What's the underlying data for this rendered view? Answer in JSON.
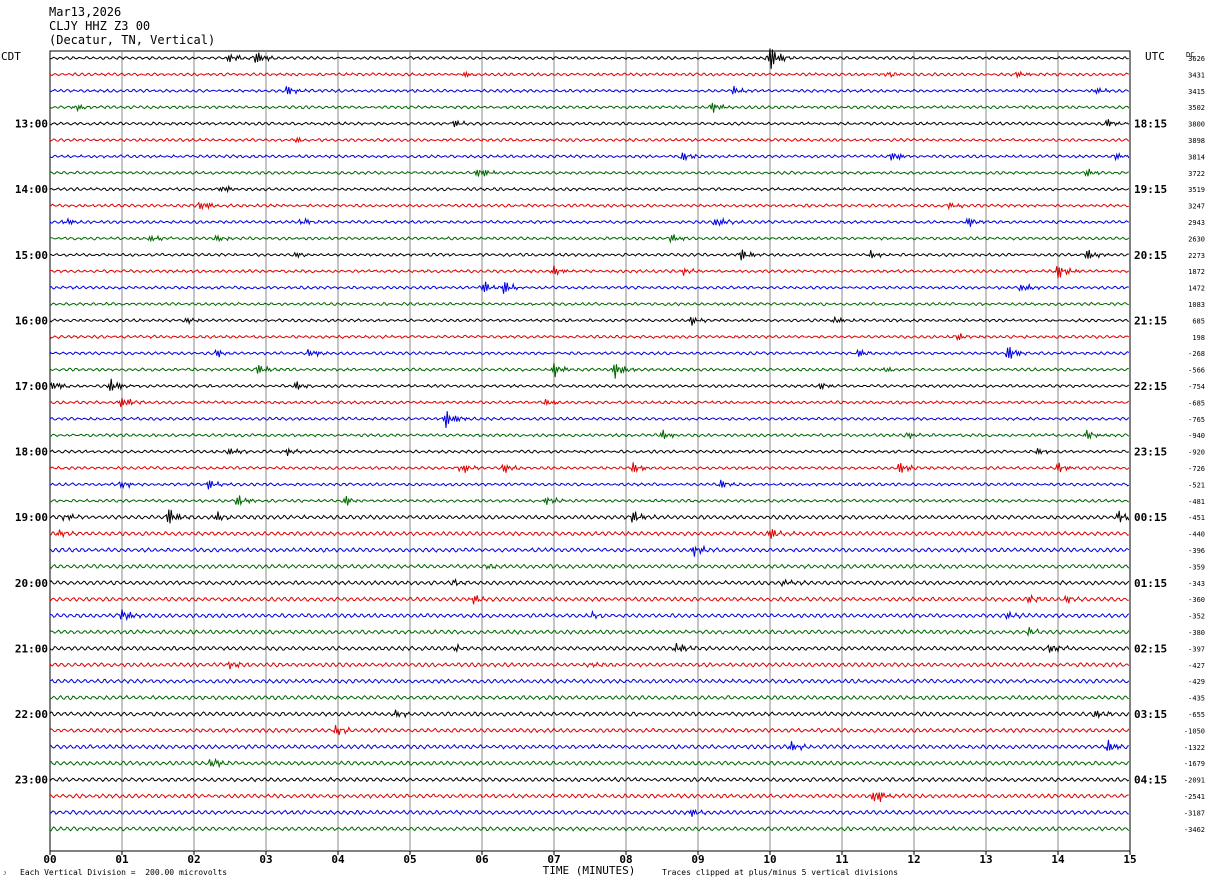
{
  "header": {
    "date": "Mar13,2026",
    "station": "CLJY HHZ Z3 00",
    "location": "(Decatur, TN, Vertical)"
  },
  "axes": {
    "left_tz": "CDT",
    "right_tz": "UTC",
    "dc_label": "DC",
    "x_label": "TIME (MINUTES)",
    "x_ticks": [
      "00",
      "01",
      "02",
      "03",
      "04",
      "05",
      "06",
      "07",
      "08",
      "09",
      "10",
      "11",
      "12",
      "13",
      "14",
      "15"
    ]
  },
  "footer": {
    "scale_note": "Each Vertical Division =  200.00 microvolts",
    "clip_note": "Traces clipped at plus/minus 5 vertical divisions",
    "corner_mark": "ᴶ"
  },
  "colors": {
    "trace_cycle": [
      "#000000",
      "#e00000",
      "#0000e0",
      "#006600"
    ],
    "grid": "#888888"
  },
  "chart_data": {
    "type": "helicorder",
    "minutes_per_line": 15,
    "xlim": [
      0,
      15
    ],
    "row_count": 48,
    "hour_labels_left": [
      {
        "row": 4,
        "text": "13:00"
      },
      {
        "row": 8,
        "text": "14:00"
      },
      {
        "row": 12,
        "text": "15:00"
      },
      {
        "row": 16,
        "text": "16:00"
      },
      {
        "row": 20,
        "text": "17:00"
      },
      {
        "row": 24,
        "text": "18:00"
      },
      {
        "row": 28,
        "text": "19:00"
      },
      {
        "row": 32,
        "text": "20:00"
      },
      {
        "row": 36,
        "text": "21:00"
      },
      {
        "row": 40,
        "text": "22:00"
      },
      {
        "row": 44,
        "text": "23:00"
      }
    ],
    "hour_labels_right": [
      {
        "row": 4,
        "text": "18:15"
      },
      {
        "row": 8,
        "text": "19:15"
      },
      {
        "row": 12,
        "text": "20:15"
      },
      {
        "row": 16,
        "text": "21:15"
      },
      {
        "row": 20,
        "text": "22:15"
      },
      {
        "row": 24,
        "text": "23:15"
      },
      {
        "row": 28,
        "text": "00:15"
      },
      {
        "row": 32,
        "text": "01:15"
      },
      {
        "row": 36,
        "text": "02:15"
      },
      {
        "row": 40,
        "text": "03:15"
      },
      {
        "row": 44,
        "text": "04:15"
      }
    ],
    "dc_offsets": [
      "3626",
      "3431",
      "3415",
      "3502",
      "3800",
      "3898",
      "3814",
      "3722",
      "3519",
      "3247",
      "2943",
      "2630",
      "2273",
      "1872",
      "1472",
      "1083",
      "685",
      "198",
      "-268",
      "-566",
      "-754",
      "-685",
      "-765",
      "-940",
      "-920",
      "-726",
      "-521",
      "-481",
      "-451",
      "-440",
      "-396",
      "-359",
      "-343",
      "-360",
      "-352",
      "-380",
      "-397",
      "-427",
      "-429",
      "-435",
      "-655",
      "-1050",
      "-1322",
      "-1679",
      "-2091",
      "-2541",
      "-3187",
      "-3462"
    ],
    "events": [
      {
        "row": 0,
        "minute": 2.5,
        "amp": 5
      },
      {
        "row": 0,
        "minute": 2.85,
        "amp": 7
      },
      {
        "row": 0,
        "minute": 9.98,
        "amp": 13
      },
      {
        "row": 1,
        "minute": 5.75,
        "amp": 3
      },
      {
        "row": 1,
        "minute": 11.6,
        "amp": 3
      },
      {
        "row": 1,
        "minute": 13.4,
        "amp": 4
      },
      {
        "row": 2,
        "minute": 3.3,
        "amp": 5
      },
      {
        "row": 2,
        "minute": 9.5,
        "amp": 4
      },
      {
        "row": 2,
        "minute": 14.5,
        "amp": 4
      },
      {
        "row": 3,
        "minute": 0.35,
        "amp": 4
      },
      {
        "row": 3,
        "minute": 9.2,
        "amp": 4
      },
      {
        "row": 4,
        "minute": 5.6,
        "amp": 4
      },
      {
        "row": 4,
        "minute": 14.7,
        "amp": 4
      },
      {
        "row": 5,
        "minute": 3.4,
        "amp": 3
      },
      {
        "row": 6,
        "minute": 8.8,
        "amp": 4
      },
      {
        "row": 6,
        "minute": 11.7,
        "amp": 5
      },
      {
        "row": 6,
        "minute": 14.8,
        "amp": 3
      },
      {
        "row": 7,
        "minute": 5.95,
        "amp": 6
      },
      {
        "row": 7,
        "minute": 14.4,
        "amp": 3
      },
      {
        "row": 8,
        "minute": 2.4,
        "amp": 4
      },
      {
        "row": 9,
        "minute": 2.1,
        "amp": 5
      },
      {
        "row": 9,
        "minute": 12.5,
        "amp": 3
      },
      {
        "row": 10,
        "minute": 0.2,
        "amp": 4
      },
      {
        "row": 10,
        "minute": 3.5,
        "amp": 4
      },
      {
        "row": 10,
        "minute": 9.25,
        "amp": 6
      },
      {
        "row": 10,
        "minute": 12.75,
        "amp": 5
      },
      {
        "row": 11,
        "minute": 1.4,
        "amp": 3
      },
      {
        "row": 11,
        "minute": 2.3,
        "amp": 4
      },
      {
        "row": 11,
        "minute": 8.6,
        "amp": 5
      },
      {
        "row": 12,
        "minute": 3.4,
        "amp": 3
      },
      {
        "row": 12,
        "minute": 9.6,
        "amp": 6
      },
      {
        "row": 12,
        "minute": 11.4,
        "amp": 3
      },
      {
        "row": 12,
        "minute": 14.4,
        "amp": 5
      },
      {
        "row": 13,
        "minute": 7.0,
        "amp": 4
      },
      {
        "row": 13,
        "minute": 8.8,
        "amp": 3
      },
      {
        "row": 13,
        "minute": 14.0,
        "amp": 7
      },
      {
        "row": 14,
        "minute": 6.0,
        "amp": 7
      },
      {
        "row": 14,
        "minute": 6.3,
        "amp": 6
      },
      {
        "row": 14,
        "minute": 13.5,
        "amp": 5
      },
      {
        "row": 16,
        "minute": 1.9,
        "amp": 3
      },
      {
        "row": 16,
        "minute": 8.9,
        "amp": 4
      },
      {
        "row": 16,
        "minute": 10.9,
        "amp": 4
      },
      {
        "row": 17,
        "minute": 12.6,
        "amp": 3
      },
      {
        "row": 18,
        "minute": 2.3,
        "amp": 4
      },
      {
        "row": 18,
        "minute": 3.6,
        "amp": 4
      },
      {
        "row": 18,
        "minute": 11.2,
        "amp": 5
      },
      {
        "row": 18,
        "minute": 13.3,
        "amp": 7
      },
      {
        "row": 19,
        "minute": 2.9,
        "amp": 5
      },
      {
        "row": 19,
        "minute": 7.0,
        "amp": 6
      },
      {
        "row": 19,
        "minute": 7.85,
        "amp": 8
      },
      {
        "row": 19,
        "minute": 11.6,
        "amp": 3
      },
      {
        "row": 20,
        "minute": 0.05,
        "amp": 5
      },
      {
        "row": 20,
        "minute": 0.85,
        "amp": 7
      },
      {
        "row": 20,
        "minute": 3.4,
        "amp": 4
      },
      {
        "row": 20,
        "minute": 10.7,
        "amp": 3
      },
      {
        "row": 21,
        "minute": 1.0,
        "amp": 6
      },
      {
        "row": 21,
        "minute": 6.9,
        "amp": 3
      },
      {
        "row": 22,
        "minute": 5.5,
        "amp": 8
      },
      {
        "row": 23,
        "minute": 8.5,
        "amp": 4
      },
      {
        "row": 23,
        "minute": 11.9,
        "amp": 3
      },
      {
        "row": 23,
        "minute": 14.4,
        "amp": 4
      },
      {
        "row": 24,
        "minute": 2.5,
        "amp": 4
      },
      {
        "row": 24,
        "minute": 3.3,
        "amp": 3
      },
      {
        "row": 24,
        "minute": 13.7,
        "amp": 3
      },
      {
        "row": 25,
        "minute": 5.7,
        "amp": 5
      },
      {
        "row": 25,
        "minute": 6.3,
        "amp": 5
      },
      {
        "row": 25,
        "minute": 8.1,
        "amp": 5
      },
      {
        "row": 25,
        "minute": 11.8,
        "amp": 6
      },
      {
        "row": 25,
        "minute": 14.0,
        "amp": 5
      },
      {
        "row": 26,
        "minute": 1.0,
        "amp": 4
      },
      {
        "row": 26,
        "minute": 2.2,
        "amp": 5
      },
      {
        "row": 26,
        "minute": 9.3,
        "amp": 5
      },
      {
        "row": 27,
        "minute": 2.6,
        "amp": 5
      },
      {
        "row": 27,
        "minute": 4.1,
        "amp": 4
      },
      {
        "row": 27,
        "minute": 6.9,
        "amp": 4
      },
      {
        "row": 28,
        "minute": 0.2,
        "amp": 4
      },
      {
        "row": 28,
        "minute": 1.65,
        "amp": 8
      },
      {
        "row": 28,
        "minute": 2.3,
        "amp": 5
      },
      {
        "row": 28,
        "minute": 8.1,
        "amp": 6
      },
      {
        "row": 28,
        "minute": 14.85,
        "amp": 6
      },
      {
        "row": 29,
        "minute": 0.1,
        "amp": 4
      },
      {
        "row": 29,
        "minute": 10.0,
        "amp": 6
      },
      {
        "row": 30,
        "minute": 8.95,
        "amp": 6
      },
      {
        "row": 31,
        "minute": 6.1,
        "amp": 3
      },
      {
        "row": 32,
        "minute": 5.6,
        "amp": 3
      },
      {
        "row": 32,
        "minute": 10.2,
        "amp": 3
      },
      {
        "row": 33,
        "minute": 5.85,
        "amp": 6
      },
      {
        "row": 33,
        "minute": 13.6,
        "amp": 4
      },
      {
        "row": 33,
        "minute": 14.1,
        "amp": 3
      },
      {
        "row": 34,
        "minute": 1.0,
        "amp": 6
      },
      {
        "row": 34,
        "minute": 7.5,
        "amp": 3
      },
      {
        "row": 34,
        "minute": 13.3,
        "amp": 3
      },
      {
        "row": 35,
        "minute": 13.6,
        "amp": 3
      },
      {
        "row": 36,
        "minute": 5.65,
        "amp": 3
      },
      {
        "row": 36,
        "minute": 8.7,
        "amp": 6
      },
      {
        "row": 36,
        "minute": 13.9,
        "amp": 5
      },
      {
        "row": 37,
        "minute": 2.5,
        "amp": 4
      },
      {
        "row": 37,
        "minute": 7.5,
        "amp": 3
      },
      {
        "row": 40,
        "minute": 4.8,
        "amp": 3
      },
      {
        "row": 40,
        "minute": 14.5,
        "amp": 5
      },
      {
        "row": 41,
        "minute": 3.95,
        "amp": 5
      },
      {
        "row": 42,
        "minute": 10.3,
        "amp": 4
      },
      {
        "row": 42,
        "minute": 14.7,
        "amp": 6
      },
      {
        "row": 43,
        "minute": 2.25,
        "amp": 5
      },
      {
        "row": 45,
        "minute": 11.45,
        "amp": 9
      },
      {
        "row": 46,
        "minute": 8.9,
        "amp": 4
      }
    ]
  }
}
